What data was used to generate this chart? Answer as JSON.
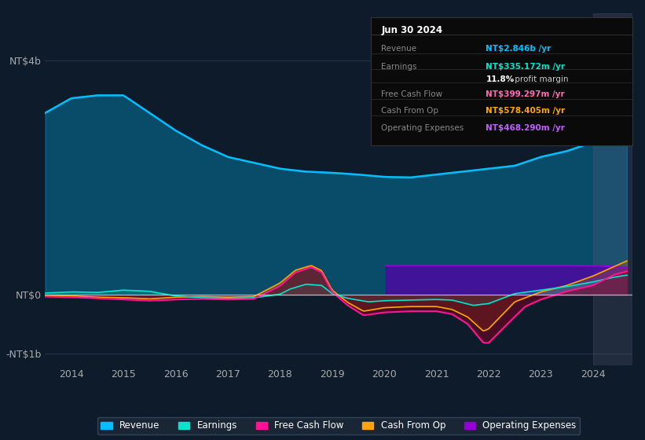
{
  "bg_color": "#0d1b2a",
  "plot_bg_color": "#0d1b2a",
  "title_date": "Jun 30 2024",
  "tooltip_rows": [
    {
      "label": "Revenue",
      "value": "NT$2.846b /yr",
      "value_color": "#00bfff",
      "label_color": "#888888"
    },
    {
      "label": "Earnings",
      "value": "NT$335.172m /yr",
      "value_color": "#00e5cc",
      "label_color": "#888888"
    },
    {
      "label": "",
      "value": "11.8%",
      "value2": " profit margin",
      "value_color": "#ffffff",
      "value2_color": "#cccccc",
      "label_color": "#888888"
    },
    {
      "label": "Free Cash Flow",
      "value": "NT$399.297m /yr",
      "value_color": "#ff69b4",
      "label_color": "#888888"
    },
    {
      "label": "Cash From Op",
      "value": "NT$578.405m /yr",
      "value_color": "#ffa500",
      "label_color": "#888888"
    },
    {
      "label": "Operating Expenses",
      "value": "NT$468.290m /yr",
      "value_color": "#bf5fff",
      "label_color": "#888888"
    }
  ],
  "ylim": [
    -1200,
    4800
  ],
  "yticks": [
    -1000,
    0,
    4000
  ],
  "ytick_labels": [
    "-NT$1b",
    "NT$0",
    "NT$4b"
  ],
  "xlim_start": 2013.5,
  "xlim_end": 2024.75,
  "xticks": [
    2014,
    2015,
    2016,
    2017,
    2018,
    2019,
    2020,
    2021,
    2022,
    2023,
    2024
  ],
  "colors": {
    "Revenue": "#00bfff",
    "Earnings": "#00e5cc",
    "Free_Cash_Flow": "#ff1493",
    "Cash_From_Op": "#ffa500",
    "Operating_Expenses": "#9400d3"
  },
  "legend_items": [
    {
      "label": "Revenue",
      "color": "#00bfff"
    },
    {
      "label": "Earnings",
      "color": "#00e5cc"
    },
    {
      "label": "Free Cash Flow",
      "color": "#ff1493"
    },
    {
      "label": "Cash From Op",
      "color": "#ffa500"
    },
    {
      "label": "Operating Expenses",
      "color": "#9400d3"
    }
  ]
}
